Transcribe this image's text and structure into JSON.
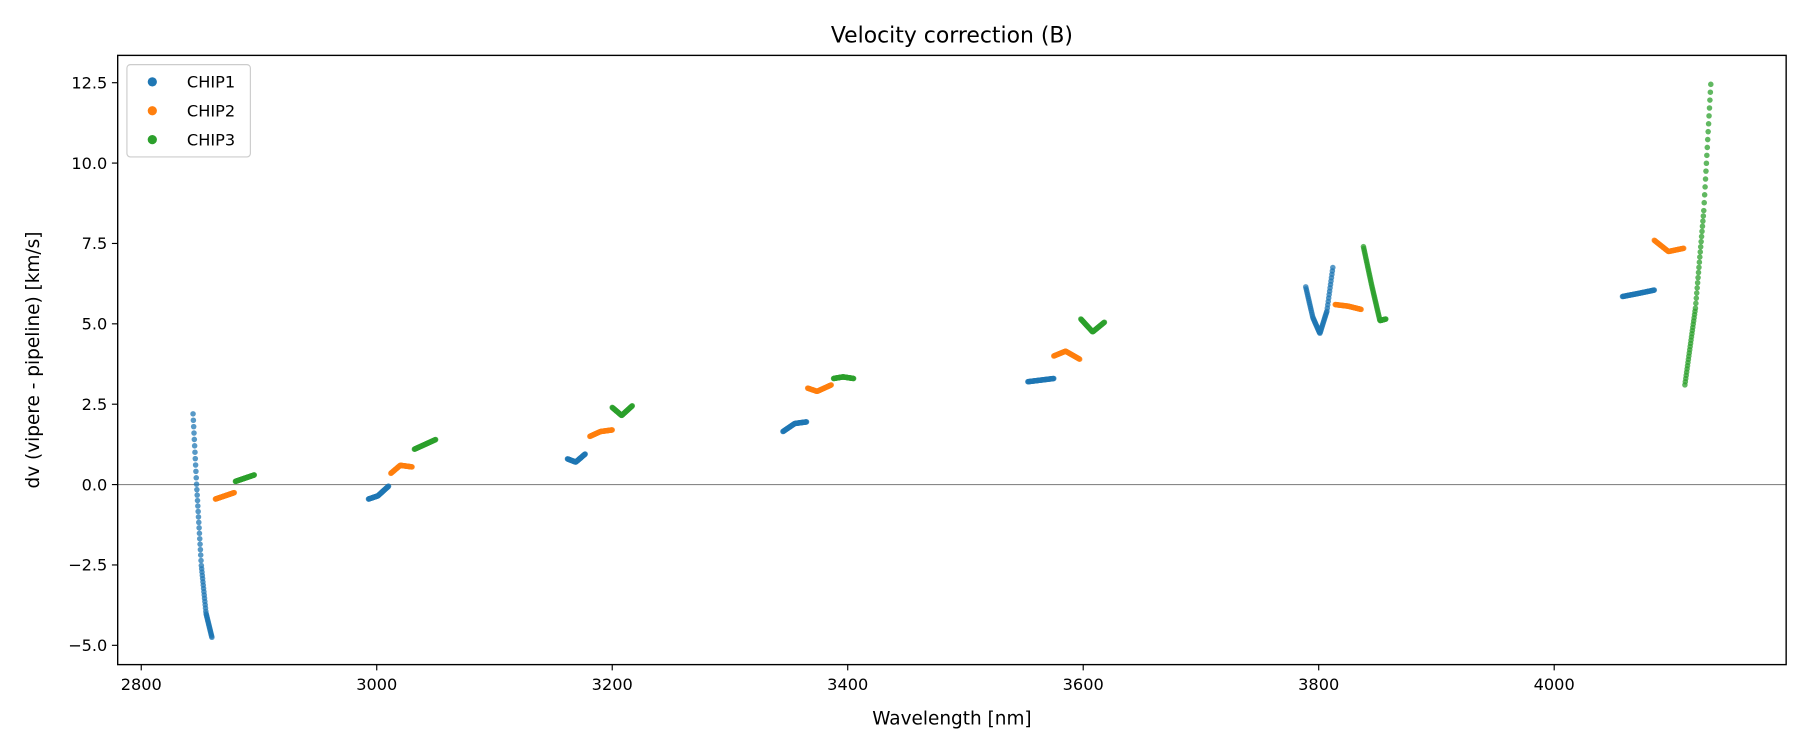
{
  "chart_data": {
    "type": "scatter",
    "title": "Velocity correction (B)",
    "xlabel": "Wavelength [nm]",
    "ylabel": "dv (vipere - pipeline) [km/s]",
    "xlim": [
      2780,
      4197
    ],
    "ylim": [
      -5.6,
      13.35
    ],
    "xticks": [
      2800,
      3000,
      3200,
      3400,
      3600,
      3800,
      4000
    ],
    "xtick_labels": [
      "2800",
      "3000",
      "3200",
      "3400",
      "3600",
      "3800",
      "4000"
    ],
    "yticks": [
      -5.0,
      -2.5,
      0.0,
      2.5,
      5.0,
      7.5,
      10.0,
      12.5
    ],
    "ytick_labels": [
      "−5.0",
      "−2.5",
      "0.0",
      "2.5",
      "5.0",
      "7.5",
      "10.0",
      "12.5"
    ],
    "hline": 0,
    "grid": false,
    "legend_position": "top-left",
    "series": [
      {
        "name": "CHIP1",
        "color": "#1f77b4",
        "segments": [
          [
            [
              2844,
              2.2
            ],
            [
              2847,
              0.0
            ],
            [
              2851,
              -2.5
            ],
            [
              2855,
              -4.0
            ],
            [
              2860,
              -4.75
            ]
          ],
          [
            [
              2993,
              -0.45
            ],
            [
              3001,
              -0.35
            ],
            [
              3010,
              -0.05
            ]
          ],
          [
            [
              3162,
              0.8
            ],
            [
              3169,
              0.7
            ],
            [
              3177,
              0.95
            ]
          ],
          [
            [
              3345,
              1.65
            ],
            [
              3355,
              1.9
            ],
            [
              3365,
              1.95
            ]
          ],
          [
            [
              3553,
              3.2
            ],
            [
              3564,
              3.25
            ],
            [
              3575,
              3.3
            ]
          ],
          [
            [
              3789,
              6.15
            ],
            [
              3795,
              5.2
            ],
            [
              3801,
              4.7
            ],
            [
              3807,
              5.4
            ],
            [
              3812,
              6.75
            ]
          ],
          [
            [
              4058,
              5.85
            ],
            [
              4072,
              5.95
            ],
            [
              4085,
              6.05
            ]
          ]
        ]
      },
      {
        "name": "CHIP2",
        "color": "#ff7f0e",
        "segments": [
          [
            [
              2863,
              -0.45
            ],
            [
              2871,
              -0.35
            ],
            [
              2879,
              -0.25
            ]
          ],
          [
            [
              3012,
              0.35
            ],
            [
              3020,
              0.6
            ],
            [
              3030,
              0.55
            ]
          ],
          [
            [
              3181,
              1.5
            ],
            [
              3190,
              1.65
            ],
            [
              3200,
              1.7
            ]
          ],
          [
            [
              3366,
              3.0
            ],
            [
              3374,
              2.9
            ],
            [
              3386,
              3.1
            ]
          ],
          [
            [
              3575,
              4.0
            ],
            [
              3585,
              4.15
            ],
            [
              3597,
              3.9
            ]
          ],
          [
            [
              3814,
              5.6
            ],
            [
              3825,
              5.55
            ],
            [
              3836,
              5.45
            ]
          ],
          [
            [
              4085,
              7.6
            ],
            [
              4097,
              7.25
            ],
            [
              4110,
              7.35
            ]
          ]
        ]
      },
      {
        "name": "CHIP3",
        "color": "#2ca02c",
        "segments": [
          [
            [
              2880,
              0.1
            ],
            [
              2888,
              0.2
            ],
            [
              2896,
              0.3
            ]
          ],
          [
            [
              3032,
              1.1
            ],
            [
              3041,
              1.25
            ],
            [
              3050,
              1.4
            ]
          ],
          [
            [
              3200,
              2.4
            ],
            [
              3208,
              2.15
            ],
            [
              3217,
              2.45
            ]
          ],
          [
            [
              3388,
              3.3
            ],
            [
              3396,
              3.35
            ],
            [
              3405,
              3.3
            ]
          ],
          [
            [
              3598,
              5.15
            ],
            [
              3608,
              4.75
            ],
            [
              3618,
              5.05
            ]
          ],
          [
            [
              3838,
              7.4
            ],
            [
              3845,
              6.2
            ],
            [
              3852,
              5.1
            ],
            [
              3857,
              5.15
            ]
          ],
          [
            [
              4111,
              3.1
            ],
            [
              4120,
              5.5
            ],
            [
              4127,
              8.5
            ],
            [
              4133,
              12.45
            ]
          ]
        ]
      }
    ]
  }
}
